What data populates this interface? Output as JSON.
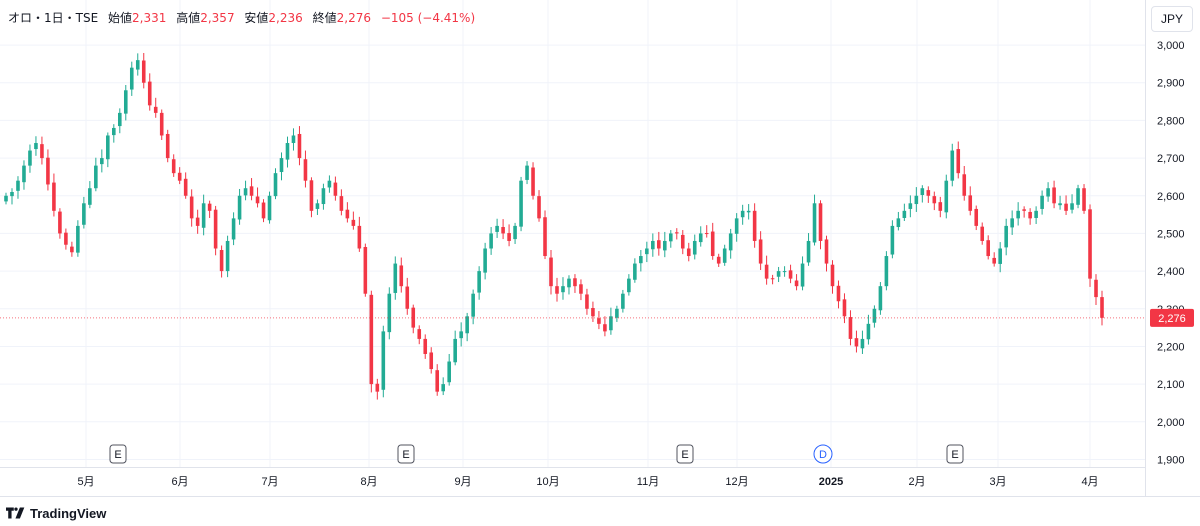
{
  "header": {
    "symbol": "オロ・1日・TSE",
    "open_label": "始値",
    "open": "2,331",
    "high_label": "高値",
    "high": "2,357",
    "low_label": "安値",
    "low": "2,236",
    "close_label": "終値",
    "close": "2,276",
    "change": "−105 (−4.41%)"
  },
  "currency_button": "JPY",
  "branding": {
    "name": "TradingView"
  },
  "colors": {
    "up": "#22ab94",
    "down": "#f23645",
    "grid": "#f0f3fa",
    "text": "#131722",
    "event": "#2962ff"
  },
  "chart_data": {
    "type": "candlestick",
    "y_axis": {
      "min": 1900,
      "max": 3000,
      "ticks": [
        "1,900",
        "2,000",
        "2,100",
        "2,200",
        "2,300",
        "2,400",
        "2,500",
        "2,600",
        "2,700",
        "2,800",
        "2,900",
        "3,000"
      ]
    },
    "x_ticks": [
      "5月",
      "6月",
      "7月",
      "8月",
      "9月",
      "10月",
      "11月",
      "12月",
      "2025",
      "2月",
      "3月",
      "4月"
    ],
    "last_price_label": "2,276",
    "last_price": 2276,
    "events": [
      {
        "label": "E",
        "near": "5月"
      },
      {
        "label": "E",
        "near": "8月"
      },
      {
        "label": "E",
        "near": "11月"
      },
      {
        "label": "D",
        "near": "12月-2025"
      },
      {
        "label": "E",
        "near": "2月"
      }
    ],
    "close_path": [
      2600,
      2610,
      2640,
      2680,
      2720,
      2740,
      2700,
      2630,
      2560,
      2500,
      2470,
      2450,
      2520,
      2580,
      2620,
      2680,
      2700,
      2760,
      2780,
      2820,
      2880,
      2940,
      2960,
      2900,
      2840,
      2820,
      2760,
      2700,
      2660,
      2640,
      2600,
      2540,
      2520,
      2580,
      2560,
      2460,
      2400,
      2480,
      2540,
      2600,
      2620,
      2600,
      2580,
      2540,
      2600,
      2660,
      2700,
      2740,
      2760,
      2700,
      2640,
      2560,
      2580,
      2620,
      2640,
      2600,
      2560,
      2540,
      2520,
      2460,
      2340,
      2100,
      2080,
      2240,
      2340,
      2420,
      2360,
      2300,
      2250,
      2220,
      2180,
      2140,
      2080,
      2100,
      2160,
      2220,
      2240,
      2280,
      2340,
      2400,
      2460,
      2500,
      2520,
      2500,
      2480,
      2520,
      2640,
      2680,
      2600,
      2540,
      2440,
      2360,
      2340,
      2360,
      2380,
      2360,
      2340,
      2300,
      2280,
      2260,
      2240,
      2280,
      2300,
      2340,
      2380,
      2420,
      2440,
      2460,
      2480,
      2460,
      2480,
      2500,
      2500,
      2460,
      2440,
      2480,
      2500,
      2500,
      2440,
      2420,
      2460,
      2500,
      2540,
      2560,
      2560,
      2480,
      2420,
      2380,
      2380,
      2400,
      2400,
      2380,
      2360,
      2420,
      2480,
      2580,
      2480,
      2420,
      2360,
      2320,
      2280,
      2220,
      2200,
      2220,
      2260,
      2300,
      2360,
      2440,
      2520,
      2540,
      2560,
      2580,
      2600,
      2620,
      2600,
      2580,
      2560,
      2640,
      2720,
      2660,
      2600,
      2560,
      2520,
      2480,
      2440,
      2420,
      2460,
      2520,
      2540,
      2560,
      2560,
      2540,
      2560,
      2600,
      2620,
      2580,
      2580,
      2560,
      2580,
      2620,
      2560,
      2380,
      2331,
      2276
    ]
  }
}
